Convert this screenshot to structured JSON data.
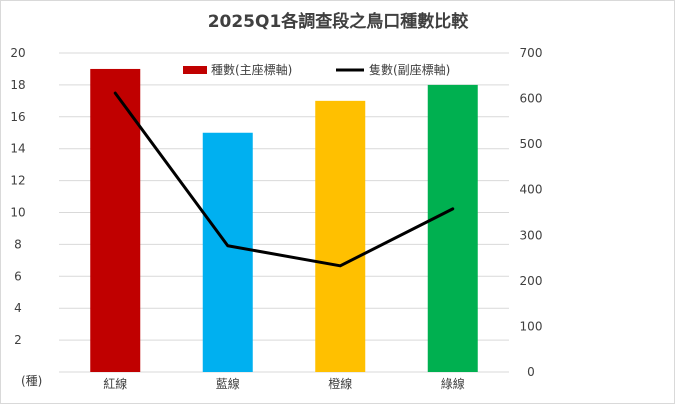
{
  "chart_data": {
    "type": "bar+line",
    "title": "2025Q1各調查段之鳥口種數比較",
    "categories": [
      "紅線",
      "藍線",
      "橙線",
      "綠線"
    ],
    "series": [
      {
        "name": "種數(主座標軸)",
        "type": "bar",
        "axis": "primary",
        "values": [
          19,
          15,
          17,
          18
        ],
        "colors": [
          "#c00000",
          "#00b0f0",
          "#ffc000",
          "#00b050"
        ]
      },
      {
        "name": "隻數(副座標軸)",
        "type": "line",
        "axis": "secondary",
        "values": [
          612,
          277,
          233,
          358
        ],
        "color": "#000000"
      }
    ],
    "y_primary": {
      "label": "(種)",
      "range": [
        0,
        20
      ],
      "ticks": [
        0,
        2,
        4,
        6,
        8,
        10,
        12,
        14,
        16,
        18,
        20
      ]
    },
    "y_secondary": {
      "range": [
        0,
        700
      ],
      "ticks": [
        0,
        100,
        200,
        300,
        400,
        500,
        600,
        700
      ]
    },
    "grid": true,
    "legend_position": "top"
  }
}
